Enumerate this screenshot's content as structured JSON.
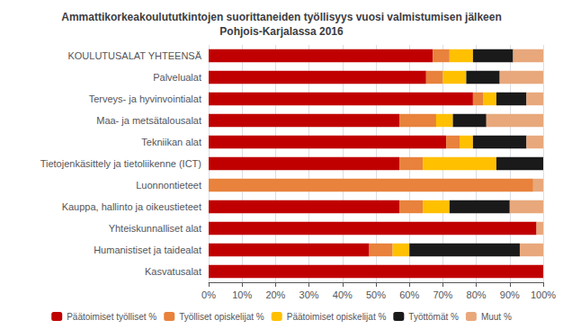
{
  "chart_data": {
    "type": "bar",
    "orientation": "horizontal",
    "stacked": true,
    "title": "Ammattikorkeakoulututkintojen suorittaneiden työllisyys vuosi valmistumisen jälkeen\nPohjois-Karjalassa 2016",
    "categories": [
      "KOULUTUSALAT YHTEENSÄ",
      "Palvelualat",
      "Terveys- ja hyvinvointialat",
      "Maa- ja metsätalousalat",
      "Tekniikan alat",
      "Tietojenkäsittely ja tietoliikenne (ICT)",
      "Luonnontieteet",
      "Kauppa, hallinto ja oikeustieteet",
      "Yhteiskunnalliset alat",
      "Humanistiset ja taidealat",
      "Kasvatusalat"
    ],
    "series": [
      {
        "name": "Päätoimiset työlliset %",
        "color": "#c00000",
        "values": [
          67,
          65,
          79,
          57,
          71,
          57,
          0,
          57,
          98,
          48,
          100
        ]
      },
      {
        "name": "Työlliset opiskelijat %",
        "color": "#e8823c",
        "values": [
          5,
          5,
          3,
          11,
          4,
          7,
          97,
          7,
          0,
          7,
          0
        ]
      },
      {
        "name": "Päätoimiset opiskelijat %",
        "color": "#ffc000",
        "values": [
          7,
          7,
          4,
          5,
          4,
          22,
          0,
          8,
          0,
          5,
          0
        ]
      },
      {
        "name": "Työttömät %",
        "color": "#1a1a1a",
        "values": [
          12,
          10,
          9,
          10,
          16,
          14,
          0,
          18,
          0,
          33,
          0
        ]
      },
      {
        "name": "Muut %",
        "color": "#e8a87c",
        "values": [
          9,
          13,
          5,
          17,
          5,
          0,
          3,
          10,
          2,
          7,
          0
        ]
      }
    ],
    "xlim": [
      0,
      100
    ],
    "xticks": [
      {
        "value": 0,
        "label": "0%"
      },
      {
        "value": 10,
        "label": "10%"
      },
      {
        "value": 20,
        "label": "20%"
      },
      {
        "value": 30,
        "label": "30%"
      },
      {
        "value": 40,
        "label": "40%"
      },
      {
        "value": 50,
        "label": "50%"
      },
      {
        "value": 60,
        "label": "60%"
      },
      {
        "value": 70,
        "label": "70%"
      },
      {
        "value": 80,
        "label": "80%"
      },
      {
        "value": 90,
        "label": "90%"
      },
      {
        "value": 100,
        "label": "100%"
      }
    ],
    "grid": true,
    "legend": "bottom"
  }
}
